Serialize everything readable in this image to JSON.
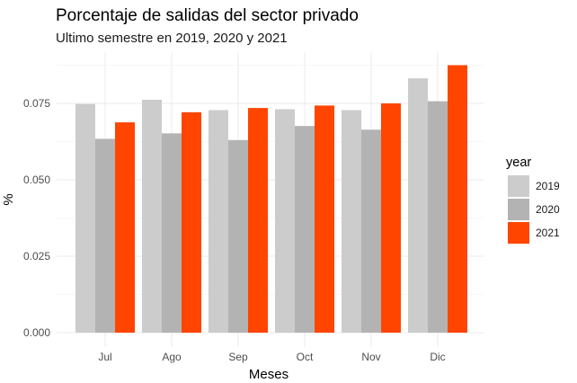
{
  "chart_data": {
    "type": "bar",
    "title": "Porcentaje de salidas del sector privado",
    "subtitle": "Ultimo semestre en 2019, 2020 y 2021",
    "xlabel": "Meses",
    "ylabel": "%",
    "categories": [
      "Jul",
      "Ago",
      "Sep",
      "Oct",
      "Nov",
      "Dic"
    ],
    "series": [
      {
        "name": "2019",
        "color": "#cccccc",
        "values": [
          0.0748,
          0.0762,
          0.0728,
          0.0731,
          0.0728,
          0.0832
        ]
      },
      {
        "name": "2020",
        "color": "#b3b3b3",
        "values": [
          0.0634,
          0.0652,
          0.063,
          0.0676,
          0.0664,
          0.0757
        ]
      },
      {
        "name": "2021",
        "color": "#ff4500",
        "values": [
          0.0688,
          0.0721,
          0.0735,
          0.0743,
          0.075,
          0.0875
        ]
      }
    ],
    "ylim": [
      0,
      0.09
    ],
    "yticks": [
      "0.000",
      "0.025",
      "0.050",
      "0.075"
    ],
    "ytick_values": [
      0,
      0.025,
      0.05,
      0.075
    ],
    "legend": {
      "title": "year",
      "placement": "right"
    },
    "grid": true
  }
}
